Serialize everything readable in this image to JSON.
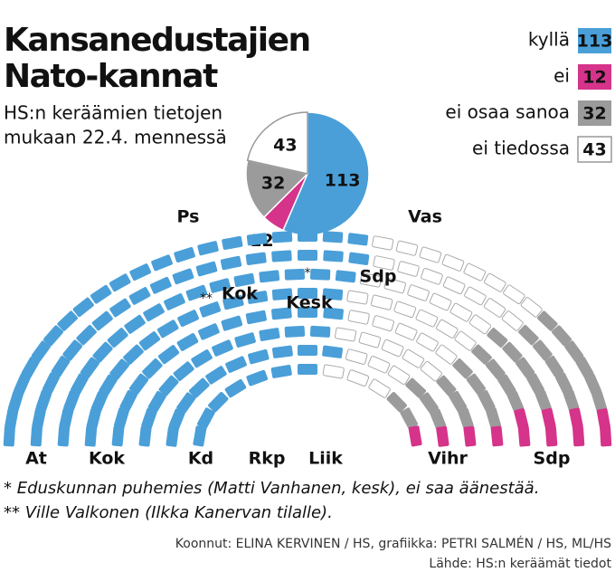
{
  "chart_data": {
    "type": "pie",
    "title": [
      "Kansanedustajien",
      "Nato-kannat"
    ],
    "subtitle": [
      "HS:n keräämien tietojen",
      "mukaan 22.4. mennessä"
    ],
    "categories": [
      "kyllä",
      "ei",
      "ei osaa sanoa",
      "ei tiedossa"
    ],
    "values": [
      113,
      12,
      32,
      43
    ],
    "colors": [
      "#4a9fd8",
      "#d6338a",
      "#9b9b9b",
      "#ffffff"
    ],
    "parties": [
      "Ps",
      "Vas",
      "Sdp",
      "Kok",
      "Kesk",
      "At",
      "Kok",
      "Kd",
      "Rkp",
      "Liik",
      "Vihr",
      "Sdp"
    ],
    "seat_notes": [
      "*",
      "**"
    ],
    "footnotes": [
      "* Eduskunnan puhemies (Matti Vanhanen, kesk), ei saa äänestää.",
      "** Ville Valkonen (Ilkka Kanervan tilalle)."
    ],
    "credits": [
      "Koonnut: ELINA KERVINEN / HS, grafiikka: PETRI SALMÉN / HS, ML/HS",
      "Lähde: HS:n keräämät tiedot"
    ]
  }
}
